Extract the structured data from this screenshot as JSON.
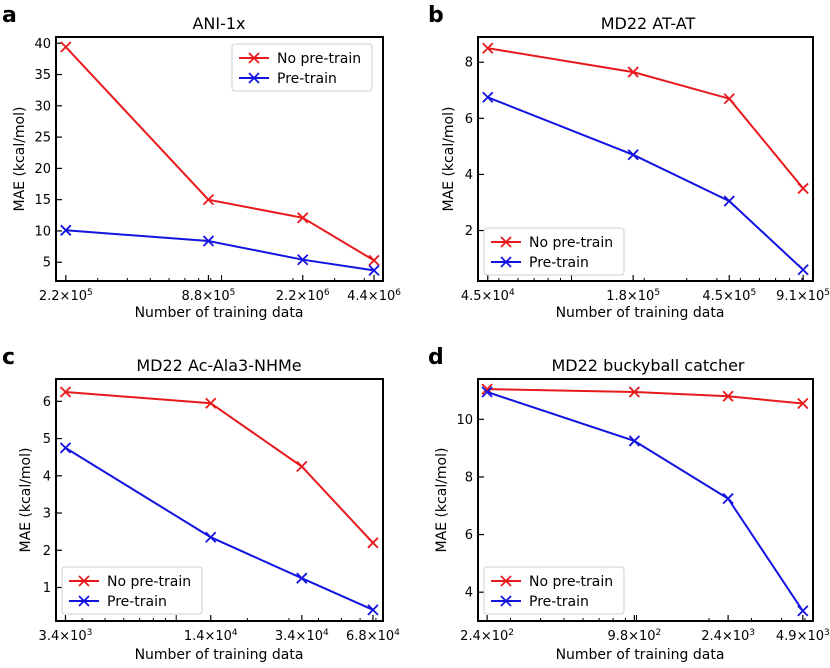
{
  "chart_data": [
    {
      "panel": "a",
      "type": "line",
      "title": "ANI-1x",
      "xlabel": "Number of training data",
      "ylabel": "MAE (kcal/mol)",
      "xscale": "log",
      "xlim": [
        200000,
        4800000
      ],
      "ylim": [
        2,
        41
      ],
      "x": [
        220000,
        880000,
        2200000,
        4400000
      ],
      "xtick_labels": [
        {
          "base": "2.2×10",
          "exp": "5"
        },
        {
          "base": "8.8×10",
          "exp": "5"
        },
        {
          "base": "2.2×10",
          "exp": "6"
        },
        {
          "base": "4.4×10",
          "exp": "6"
        }
      ],
      "yticks": [
        5,
        10,
        15,
        20,
        25,
        30,
        35,
        40
      ],
      "legend_position": "top-right",
      "series": [
        {
          "name": "No pre-train",
          "color": "#e8191c",
          "values": [
            39.4,
            15.0,
            12.1,
            5.3
          ]
        },
        {
          "name": "Pre-train",
          "color": "#1414e0",
          "values": [
            10.1,
            8.4,
            5.4,
            3.7
          ]
        }
      ]
    },
    {
      "panel": "b",
      "type": "line",
      "title": "MD22 AT-AT",
      "xlabel": "Number of training data",
      "ylabel": "MAE (kcal/mol)",
      "xscale": "log",
      "xlim": [
        41000,
        1000000
      ],
      "ylim": [
        0.2,
        8.9
      ],
      "x": [
        45000,
        180000,
        450000,
        910000
      ],
      "xtick_labels": [
        {
          "base": "4.5×10",
          "exp": "4"
        },
        {
          "base": "1.8×10",
          "exp": "5"
        },
        {
          "base": "4.5×10",
          "exp": "5"
        },
        {
          "base": "9.1×10",
          "exp": "5"
        }
      ],
      "yticks": [
        2,
        4,
        6,
        8
      ],
      "legend_position": "bottom-left",
      "series": [
        {
          "name": "No pre-train",
          "color": "#e8191c",
          "values": [
            8.5,
            7.65,
            6.7,
            3.5
          ]
        },
        {
          "name": "Pre-train",
          "color": "#1414e0",
          "values": [
            6.75,
            4.7,
            3.05,
            0.6
          ]
        }
      ]
    },
    {
      "panel": "c",
      "type": "line",
      "title": "MD22 Ac-Ala3-NHMe",
      "xlabel": "Number of training data",
      "ylabel": "MAE (kcal/mol)",
      "xscale": "log",
      "xlim": [
        3100,
        75000
      ],
      "ylim": [
        0.1,
        6.6
      ],
      "x": [
        3400,
        14000,
        34000,
        68000
      ],
      "xtick_labels": [
        {
          "base": "3.4×10",
          "exp": "3"
        },
        {
          "base": "1.4×10",
          "exp": "4"
        },
        {
          "base": "3.4×10",
          "exp": "4"
        },
        {
          "base": "6.8×10",
          "exp": "4"
        }
      ],
      "yticks": [
        1,
        2,
        3,
        4,
        5,
        6
      ],
      "legend_position": "bottom-left",
      "series": [
        {
          "name": "No pre-train",
          "color": "#e8191c",
          "values": [
            6.25,
            5.95,
            4.25,
            2.2
          ]
        },
        {
          "name": "Pre-train",
          "color": "#1414e0",
          "values": [
            4.75,
            2.35,
            1.25,
            0.4
          ]
        }
      ]
    },
    {
      "panel": "d",
      "type": "line",
      "title": "MD22 buckyball catcher",
      "xlabel": "Number of training data",
      "ylabel": "MAE (kcal/mol)",
      "xscale": "log",
      "xlim": [
        220,
        5400
      ],
      "ylim": [
        3.0,
        11.4
      ],
      "x": [
        240,
        980,
        2400,
        4900
      ],
      "xtick_labels": [
        {
          "base": "2.4×10",
          "exp": "2"
        },
        {
          "base": "9.8×10",
          "exp": "2"
        },
        {
          "base": "2.4×10",
          "exp": "3"
        },
        {
          "base": "4.9×10",
          "exp": "3"
        }
      ],
      "yticks": [
        4,
        6,
        8,
        10
      ],
      "legend_position": "bottom-left",
      "series": [
        {
          "name": "No pre-train",
          "color": "#e8191c",
          "values": [
            11.05,
            10.95,
            10.8,
            10.55
          ]
        },
        {
          "name": "Pre-train",
          "color": "#1414e0",
          "values": [
            10.95,
            9.25,
            7.25,
            3.35
          ]
        }
      ]
    }
  ]
}
